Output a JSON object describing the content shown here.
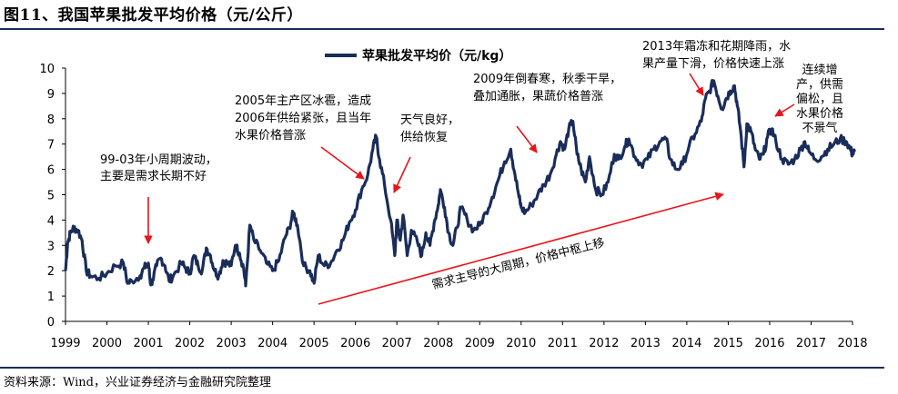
{
  "figure_title": "图11、我国苹果批发平均价格（元/公斤）",
  "source": "资料来源：Wind，兴业证券经济与金融研究院整理",
  "colors": {
    "series": "#1a2d5a",
    "arrow": "#e8141b",
    "rule": "#1a2d5a"
  },
  "chart_data": {
    "type": "line",
    "title": "",
    "xlabel": "",
    "ylabel": "",
    "ylim": [
      0,
      10
    ],
    "xlim": [
      1999,
      2018
    ],
    "yticks": [
      "0",
      "1",
      "2",
      "3",
      "4",
      "5",
      "6",
      "7",
      "8",
      "9",
      "10"
    ],
    "xticks": [
      "1999",
      "2000",
      "2001",
      "2002",
      "2003",
      "2004",
      "2005",
      "2006",
      "2007",
      "2008",
      "2009",
      "2010",
      "2011",
      "2012",
      "2013",
      "2014",
      "2015",
      "2016",
      "2017",
      "2018"
    ],
    "grid": false,
    "legend_position": "top-center",
    "series": [
      {
        "name": "苹果批发平均价（元/kg）",
        "points": [
          [
            1999.0,
            2.0
          ],
          [
            1999.05,
            3.1
          ],
          [
            1999.12,
            3.5
          ],
          [
            1999.2,
            3.7
          ],
          [
            1999.3,
            3.6
          ],
          [
            1999.4,
            3.2
          ],
          [
            1999.5,
            2.0
          ],
          [
            1999.6,
            1.8
          ],
          [
            1999.8,
            1.7
          ],
          [
            2000.0,
            1.9
          ],
          [
            2000.2,
            2.2
          ],
          [
            2000.4,
            2.3
          ],
          [
            2000.5,
            1.5
          ],
          [
            2000.6,
            1.6
          ],
          [
            2000.8,
            1.8
          ],
          [
            2000.9,
            2.1
          ],
          [
            2001.0,
            2.3
          ],
          [
            2001.05,
            1.5
          ],
          [
            2001.1,
            1.6
          ],
          [
            2001.2,
            2.2
          ],
          [
            2001.3,
            2.5
          ],
          [
            2001.4,
            2.2
          ],
          [
            2001.5,
            1.6
          ],
          [
            2001.6,
            1.8
          ],
          [
            2001.8,
            2.3
          ],
          [
            2001.9,
            2.1
          ],
          [
            2002.0,
            1.9
          ],
          [
            2002.1,
            2.6
          ],
          [
            2002.2,
            2.2
          ],
          [
            2002.3,
            2.0
          ],
          [
            2002.4,
            2.9
          ],
          [
            2002.5,
            2.6
          ],
          [
            2002.6,
            2.0
          ],
          [
            2002.7,
            1.8
          ],
          [
            2002.8,
            2.4
          ],
          [
            2002.9,
            2.3
          ],
          [
            2003.0,
            2.2
          ],
          [
            2003.1,
            3.0
          ],
          [
            2003.2,
            2.7
          ],
          [
            2003.3,
            2.1
          ],
          [
            2003.35,
            1.4
          ],
          [
            2003.45,
            3.8
          ],
          [
            2003.55,
            3.2
          ],
          [
            2003.7,
            2.8
          ],
          [
            2003.85,
            2.3
          ],
          [
            2004.0,
            2.0
          ],
          [
            2004.15,
            2.4
          ],
          [
            2004.3,
            3.3
          ],
          [
            2004.4,
            3.7
          ],
          [
            2004.5,
            4.3
          ],
          [
            2004.6,
            3.8
          ],
          [
            2004.75,
            2.2
          ],
          [
            2004.9,
            2.0
          ],
          [
            2005.0,
            1.5
          ],
          [
            2005.1,
            2.6
          ],
          [
            2005.25,
            2.2
          ],
          [
            2005.4,
            2.3
          ],
          [
            2005.55,
            2.8
          ],
          [
            2005.7,
            3.2
          ],
          [
            2005.85,
            3.9
          ],
          [
            2006.0,
            4.4
          ],
          [
            2006.15,
            5.2
          ],
          [
            2006.3,
            5.8
          ],
          [
            2006.42,
            6.8
          ],
          [
            2006.5,
            7.3
          ],
          [
            2006.58,
            6.4
          ],
          [
            2006.7,
            5.4
          ],
          [
            2006.85,
            4.0
          ],
          [
            2006.95,
            2.6
          ],
          [
            2007.0,
            4.0
          ],
          [
            2007.08,
            3.2
          ],
          [
            2007.15,
            4.2
          ],
          [
            2007.25,
            2.6
          ],
          [
            2007.35,
            3.6
          ],
          [
            2007.5,
            3.1
          ],
          [
            2007.6,
            2.6
          ],
          [
            2007.7,
            3.5
          ],
          [
            2007.8,
            3.0
          ],
          [
            2007.9,
            3.9
          ],
          [
            2008.0,
            4.6
          ],
          [
            2008.05,
            5.2
          ],
          [
            2008.15,
            4.5
          ],
          [
            2008.25,
            3.5
          ],
          [
            2008.35,
            3.0
          ],
          [
            2008.45,
            3.7
          ],
          [
            2008.55,
            4.5
          ],
          [
            2008.7,
            4.0
          ],
          [
            2008.85,
            3.6
          ],
          [
            2009.0,
            3.8
          ],
          [
            2009.15,
            4.3
          ],
          [
            2009.3,
            4.9
          ],
          [
            2009.45,
            5.6
          ],
          [
            2009.6,
            6.3
          ],
          [
            2009.75,
            6.8
          ],
          [
            2009.85,
            5.8
          ],
          [
            2009.95,
            4.9
          ],
          [
            2010.0,
            4.5
          ],
          [
            2010.1,
            4.3
          ],
          [
            2010.25,
            4.6
          ],
          [
            2010.4,
            5.0
          ],
          [
            2010.55,
            5.4
          ],
          [
            2010.7,
            5.8
          ],
          [
            2010.85,
            6.6
          ],
          [
            2010.95,
            7.1
          ],
          [
            2011.05,
            6.8
          ],
          [
            2011.15,
            7.6
          ],
          [
            2011.25,
            7.9
          ],
          [
            2011.35,
            6.6
          ],
          [
            2011.45,
            6.0
          ],
          [
            2011.55,
            5.5
          ],
          [
            2011.65,
            6.5
          ],
          [
            2011.8,
            5.2
          ],
          [
            2011.95,
            5.0
          ],
          [
            2012.1,
            5.5
          ],
          [
            2012.25,
            6.6
          ],
          [
            2012.35,
            6.4
          ],
          [
            2012.5,
            6.9
          ],
          [
            2012.6,
            7.2
          ],
          [
            2012.75,
            6.5
          ],
          [
            2012.9,
            6.2
          ],
          [
            2013.05,
            6.4
          ],
          [
            2013.2,
            6.8
          ],
          [
            2013.35,
            7.1
          ],
          [
            2013.5,
            7.2
          ],
          [
            2013.6,
            6.4
          ],
          [
            2013.75,
            6.0
          ],
          [
            2013.9,
            6.2
          ],
          [
            2014.05,
            6.9
          ],
          [
            2014.2,
            7.4
          ],
          [
            2014.35,
            7.9
          ],
          [
            2014.45,
            8.8
          ],
          [
            2014.55,
            9.1
          ],
          [
            2014.65,
            9.5
          ],
          [
            2014.75,
            8.9
          ],
          [
            2014.85,
            8.4
          ],
          [
            2014.95,
            8.8
          ],
          [
            2015.05,
            9.1
          ],
          [
            2015.15,
            9.3
          ],
          [
            2015.22,
            8.5
          ],
          [
            2015.3,
            7.5
          ],
          [
            2015.38,
            6.1
          ],
          [
            2015.45,
            7.8
          ],
          [
            2015.55,
            7.5
          ],
          [
            2015.65,
            6.8
          ],
          [
            2015.75,
            6.4
          ],
          [
            2015.85,
            6.6
          ],
          [
            2015.95,
            7.3
          ],
          [
            2016.05,
            7.6
          ],
          [
            2016.15,
            7.1
          ],
          [
            2016.3,
            6.4
          ],
          [
            2016.45,
            6.2
          ],
          [
            2016.6,
            6.4
          ],
          [
            2016.75,
            6.8
          ],
          [
            2016.85,
            7.1
          ],
          [
            2016.95,
            6.7
          ],
          [
            2017.1,
            6.4
          ],
          [
            2017.25,
            6.5
          ],
          [
            2017.4,
            6.8
          ],
          [
            2017.55,
            7.0
          ],
          [
            2017.7,
            7.2
          ],
          [
            2017.85,
            7.1
          ],
          [
            2017.95,
            6.8
          ],
          [
            2018.0,
            6.6
          ],
          [
            2018.05,
            6.7
          ]
        ]
      }
    ],
    "annotations": [
      {
        "text": "99-03年小周期波动，主要是需求长期不好",
        "lines": [
          "99-03年小周期波动，",
          "主要是需求长期不好"
        ]
      },
      {
        "text": "2005年主产区冰雹，造成2006年供给紧张，且当年水果价格普涨",
        "lines": [
          "2005年主产区冰雹，造成",
          "2006年供给紧张，且当年",
          "水果价格普涨"
        ]
      },
      {
        "text": "天气良好，供给恢复",
        "lines": [
          "天气良好，",
          "供给恢复"
        ]
      },
      {
        "text": "2009年倒春寒，秋季干旱，叠加通胀，果蔬价格普涨",
        "lines": [
          "2009年倒春寒，秋季干旱，",
          "叠加通胀，果蔬价格普涨"
        ]
      },
      {
        "text": "2013年霜冻和花期降雨，水果产量下滑，价格快速上涨",
        "lines": [
          "2013年霜冻和花期降雨，水",
          "果产量下滑，价格快速上涨"
        ]
      },
      {
        "text": "连续增产，供需偏松，且水果价格不景气",
        "lines": [
          "连续增",
          "产，供需",
          "偏松，且",
          "水果价格",
          "不景气"
        ]
      },
      {
        "text": "需求主导的大周期，价格中枢上移",
        "lines": [
          "需求主导的大周期，价格中枢上移"
        ]
      }
    ]
  }
}
